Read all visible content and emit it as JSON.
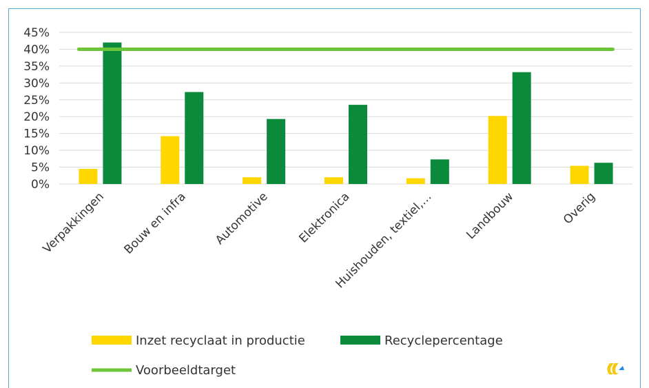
{
  "chart_data": {
    "type": "bar",
    "categories": [
      "Verpakkingen",
      "Bouw en infra",
      "Automotive",
      "Elektronica",
      "Huishouden, textiel,…",
      "Landbouw",
      "Overig"
    ],
    "series": [
      {
        "name": "Inzet recyclaat in productie",
        "type": "bar",
        "color": "#ffd700",
        "values": [
          4.5,
          14.2,
          2.0,
          2.0,
          1.7,
          20.2,
          5.4
        ]
      },
      {
        "name": "Recyclepercentage",
        "type": "bar",
        "color": "#0a8a3a",
        "values": [
          42.0,
          27.3,
          19.3,
          23.5,
          7.3,
          33.2,
          6.3
        ]
      },
      {
        "name": "Voorbeeldtarget",
        "type": "line",
        "color": "#6dc639",
        "values": [
          40,
          40,
          40,
          40,
          40,
          40,
          40
        ]
      }
    ],
    "y_tick_labels": [
      "0%",
      "5%",
      "10%",
      "15%",
      "20%",
      "25%",
      "30%",
      "35%",
      "40%",
      "45%"
    ],
    "ylim": [
      0,
      45
    ],
    "grid": true,
    "legend_position": "bottom"
  },
  "colors": {
    "border": "#5aa7d6",
    "grid": "#d9d9d9",
    "text": "#333333",
    "logo_yellow": "#f2c811",
    "logo_blue": "#1e88e5"
  },
  "logo": {
    "icon": "brand-logo-icon"
  }
}
